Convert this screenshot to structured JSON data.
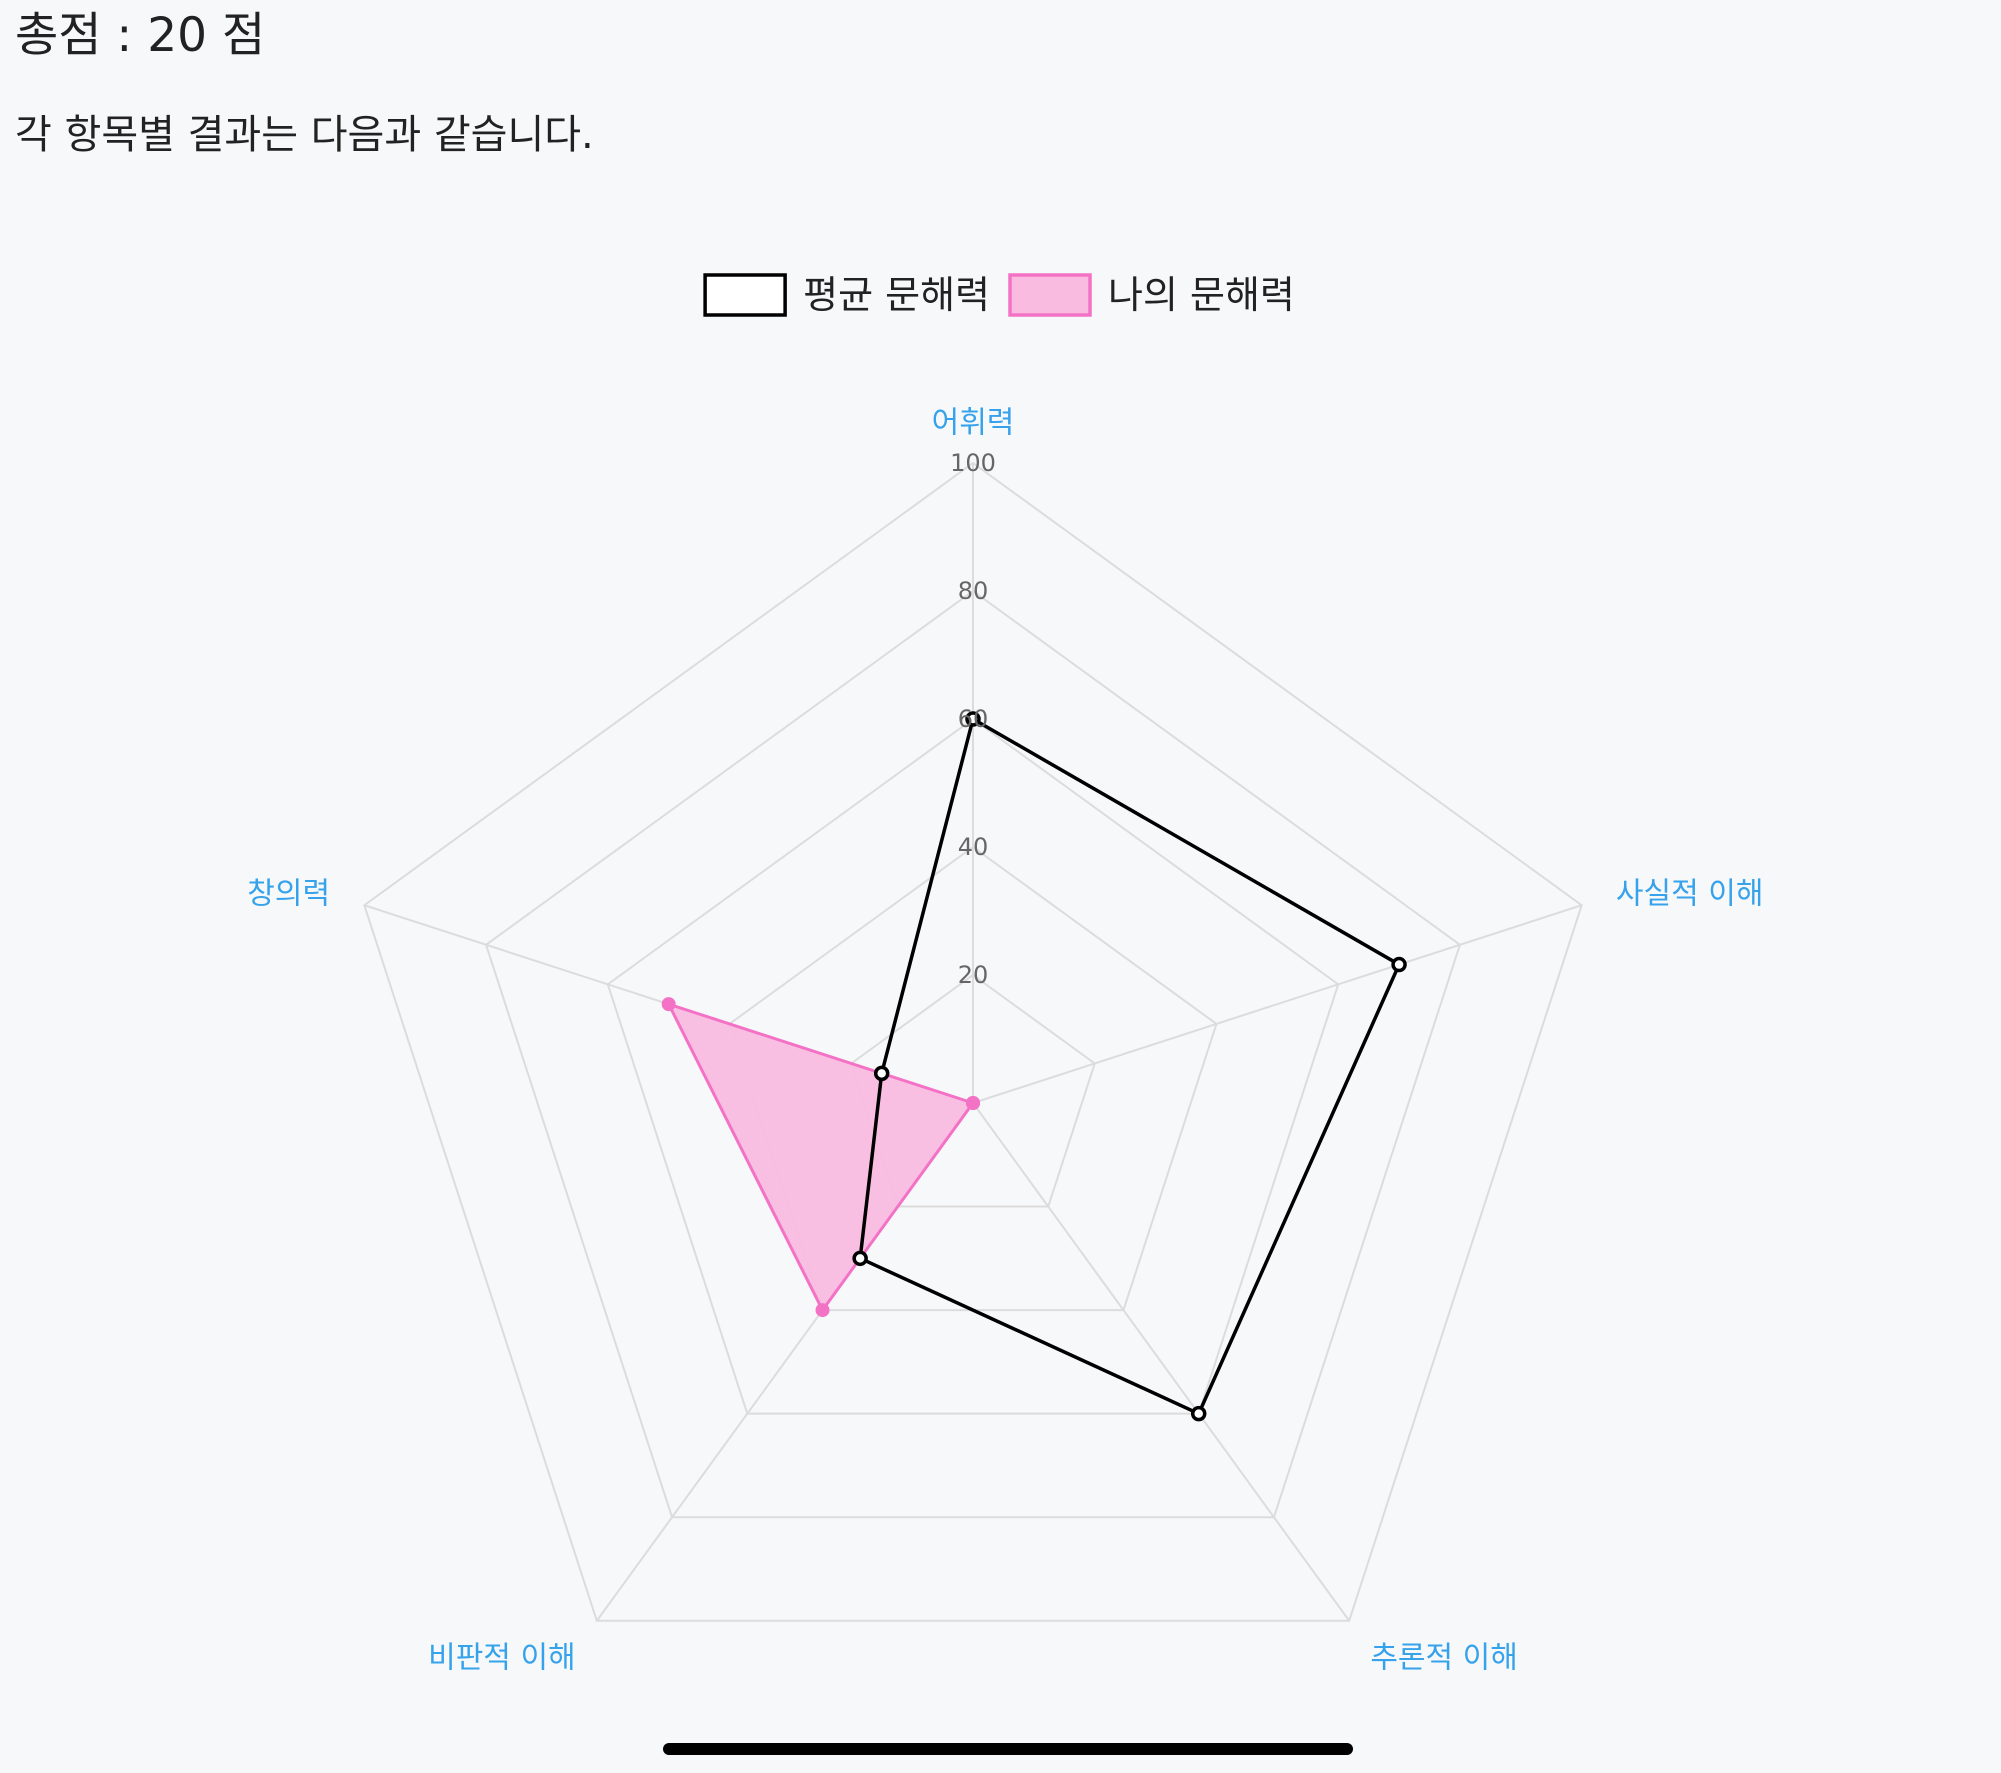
{
  "header": {
    "total_score": "총점 : 20 점",
    "subtitle": "각 항목별 결과는 다음과 같습니다."
  },
  "chart_data": {
    "type": "radar",
    "categories": [
      "어휘력",
      "사실적 이해",
      "추론적 이해",
      "비판적 이해",
      "창의력"
    ],
    "rmin": 0,
    "rmax": 100,
    "ticks": [
      20,
      40,
      60,
      80,
      100
    ],
    "grid": true,
    "legend_position": "top",
    "category_label_color": "#36a2eb",
    "series": [
      {
        "name": "평균 문해력",
        "values": [
          60,
          70,
          60,
          30,
          15
        ],
        "line_color": "#000000",
        "fill_color": "none"
      },
      {
        "name": "나의 문해력",
        "values": [
          0,
          0,
          0,
          40,
          50
        ],
        "line_color": "#f472c6",
        "fill_color": "#f9bce0"
      }
    ]
  }
}
